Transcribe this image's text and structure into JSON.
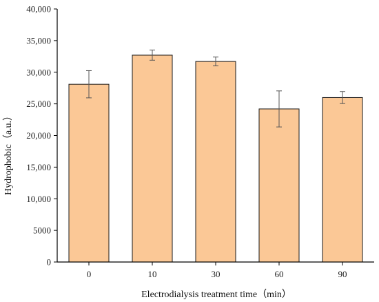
{
  "chart_data": {
    "type": "bar",
    "title": "",
    "xlabel": "Electrodialysis treatment time（min）",
    "ylabel": "Hydrophobic（a.u.）",
    "categories": [
      "0",
      "10",
      "30",
      "60",
      "90"
    ],
    "values": [
      28100,
      32700,
      31700,
      24200,
      26000
    ],
    "errors": [
      2150,
      800,
      700,
      2850,
      950
    ],
    "ylim": [
      0,
      40000
    ],
    "yticks": [
      0,
      5000,
      10000,
      15000,
      20000,
      25000,
      30000,
      35000,
      40000
    ],
    "ytick_labels": [
      "0",
      "5000",
      "10,000",
      "15,000",
      "20,000",
      "25,000",
      "30,000",
      "35,000",
      "40,000"
    ],
    "grid": false,
    "colors": {
      "bar_fill": "#fbc896",
      "bar_stroke": "#1a1a1a",
      "error_bar": "#555555",
      "axis": "#000000"
    }
  }
}
